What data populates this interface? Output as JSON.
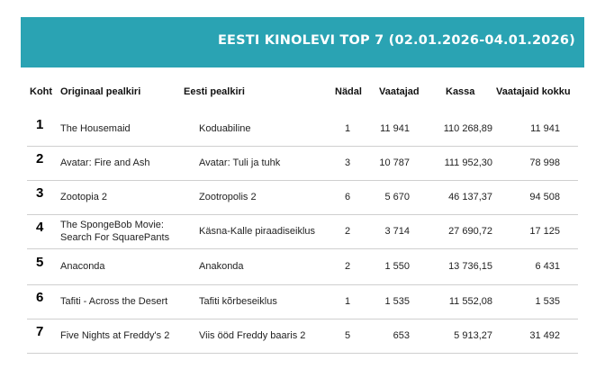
{
  "title": "EESTI KINOLEVI TOP 7 (02.01.2026-04.01.2026)",
  "columns": {
    "rank": "Koht",
    "original": "Originaal pealkiri",
    "estonian": "Eesti pealkiri",
    "week": "Nädal",
    "viewers": "Vaatajad",
    "box": "Kassa",
    "total": "Vaatajaid kokku"
  },
  "rows": [
    {
      "rank": "1",
      "original": "The Housemaid",
      "estonian": "Koduabiline",
      "week": "1",
      "viewers": "11 941",
      "box": "110 268,89",
      "total": "11 941"
    },
    {
      "rank": "2",
      "original": "Avatar: Fire and Ash",
      "estonian": "Avatar: Tuli ja tuhk",
      "week": "3",
      "viewers": "10 787",
      "box": "111 952,30",
      "total": "78 998"
    },
    {
      "rank": "3",
      "original": "Zootopia 2",
      "estonian": "Zootropolis 2",
      "week": "6",
      "viewers": "5 670",
      "box": "46 137,37",
      "total": "94 508"
    },
    {
      "rank": "4",
      "original": "The SpongeBob Movie: Search For SquarePants",
      "estonian": "Käsna-Kalle piraadiseiklus",
      "week": "2",
      "viewers": "3 714",
      "box": "27 690,72",
      "total": "17 125"
    },
    {
      "rank": "5",
      "original": "Anaconda",
      "estonian": "Anakonda",
      "week": "2",
      "viewers": "1 550",
      "box": "13 736,15",
      "total": "6 431"
    },
    {
      "rank": "6",
      "original": "Tafiti - Across the Desert",
      "estonian": "Tafiti kõrbeseiklus",
      "week": "1",
      "viewers": "1 535",
      "box": "11 552,08",
      "total": "1 535"
    },
    {
      "rank": "7",
      "original": "Five Nights at Freddy's 2",
      "estonian": "Viis ööd Freddy baaris 2",
      "week": "5",
      "viewers": "653",
      "box": "5 913,27",
      "total": "31 492"
    }
  ],
  "colors": {
    "banner": "#2aa3b3",
    "divider": "#cfcfcf"
  }
}
